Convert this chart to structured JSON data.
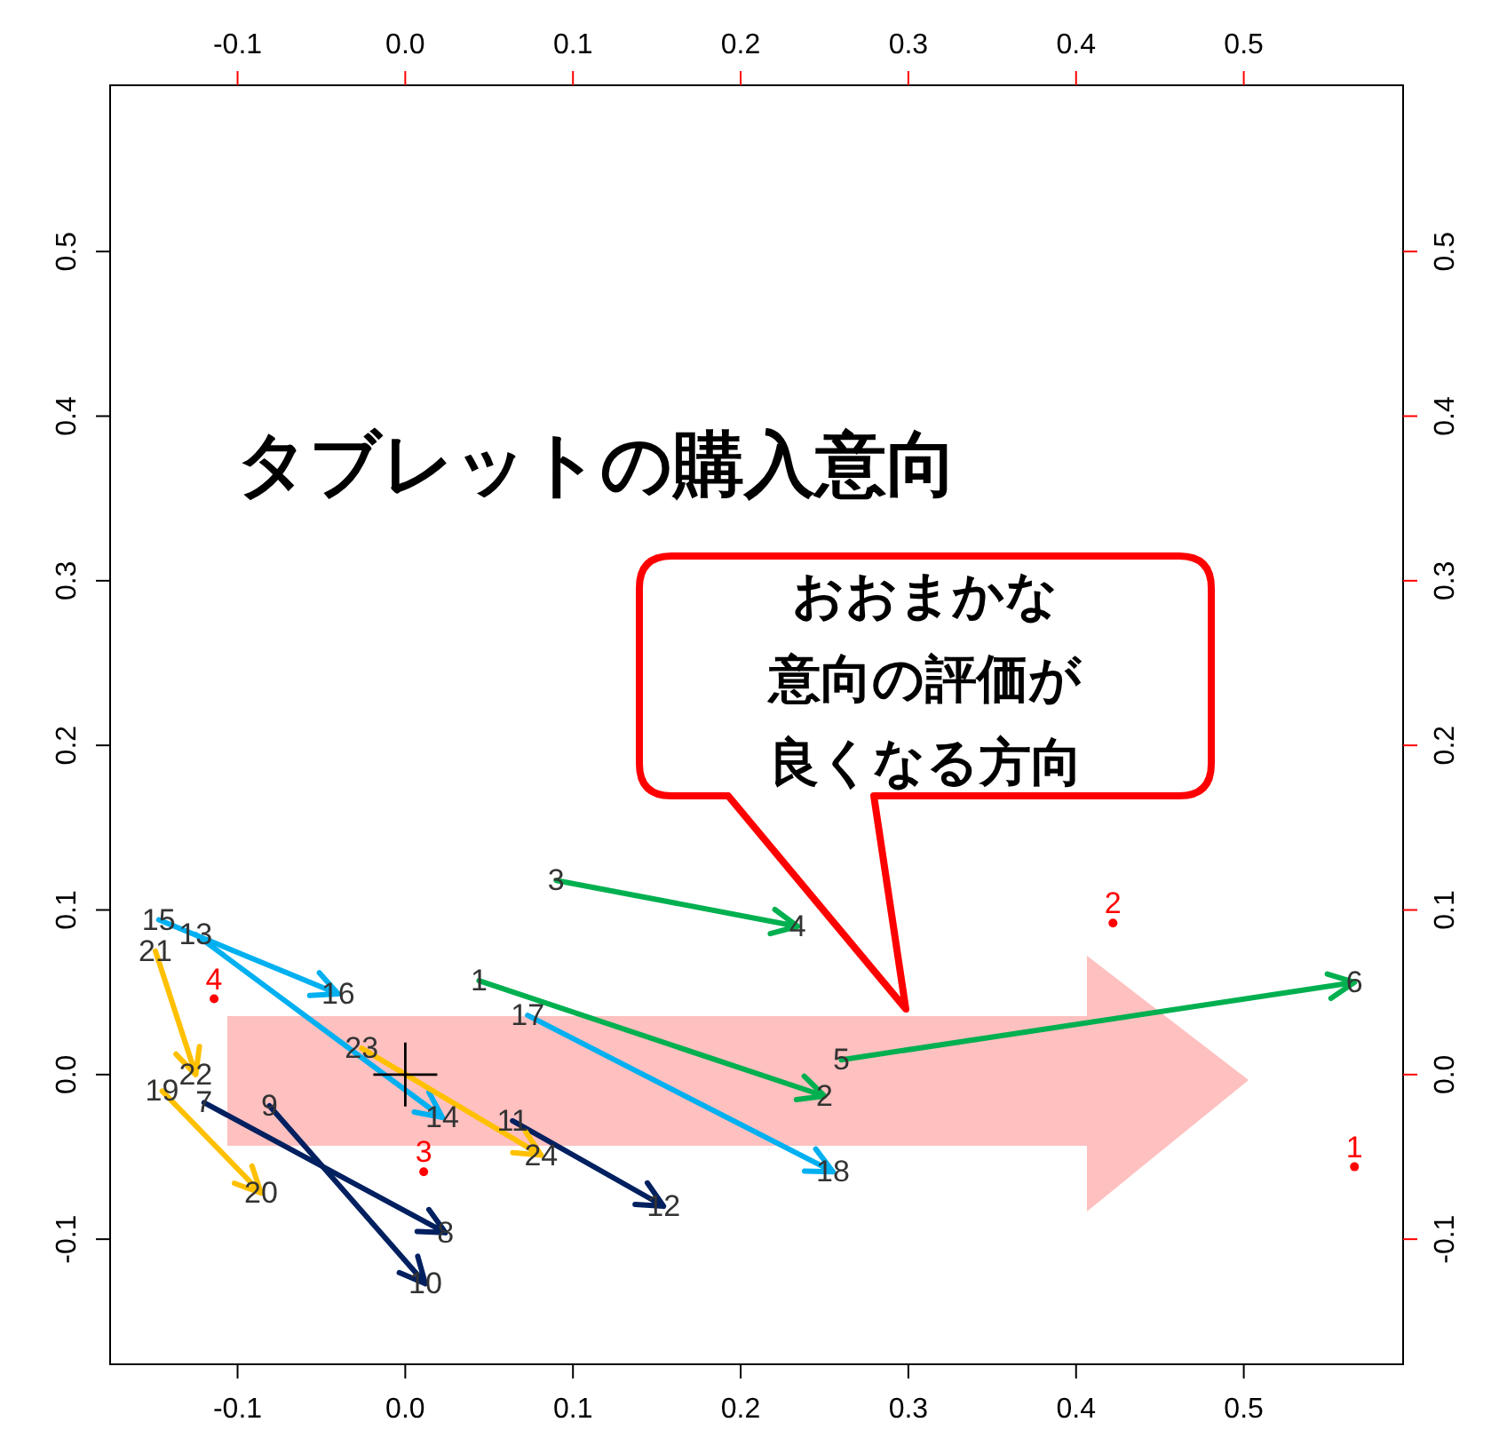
{
  "chart_data": {
    "type": "line",
    "title": "タブレットの購入意向",
    "annotations": [
      "おおまかな",
      "意向の評価が",
      "良くなる方向",
      {
        "text": "1",
        "x": 0.044,
        "y": 0.057
      },
      {
        "text": "2",
        "x": 0.25,
        "y": -0.013
      },
      {
        "text": "3",
        "x": 0.09,
        "y": 0.118
      },
      {
        "text": "4",
        "x": 0.234,
        "y": 0.09
      },
      {
        "text": "5",
        "x": 0.26,
        "y": 0.009
      },
      {
        "text": "6",
        "x": 0.566,
        "y": 0.056
      },
      {
        "text": "7",
        "x": -0.12,
        "y": -0.017
      },
      {
        "text": "8",
        "x": 0.024,
        "y": -0.096
      },
      {
        "text": "9",
        "x": -0.081,
        "y": -0.019
      },
      {
        "text": "10",
        "x": 0.012,
        "y": -0.127
      },
      {
        "text": "11",
        "x": 0.064,
        "y": -0.028
      },
      {
        "text": "12",
        "x": 0.154,
        "y": -0.08
      },
      {
        "text": "13",
        "x": -0.125,
        "y": 0.085
      },
      {
        "text": "14",
        "x": 0.022,
        "y": -0.026
      },
      {
        "text": "15",
        "x": -0.147,
        "y": 0.094
      },
      {
        "text": "16",
        "x": -0.04,
        "y": 0.049
      },
      {
        "text": "17",
        "x": 0.073,
        "y": 0.036
      },
      {
        "text": "18",
        "x": 0.255,
        "y": -0.059
      },
      {
        "text": "19",
        "x": -0.145,
        "y": -0.01
      },
      {
        "text": "20",
        "x": -0.086,
        "y": -0.072
      },
      {
        "text": "21",
        "x": -0.149,
        "y": 0.075
      },
      {
        "text": "22",
        "x": -0.125,
        "y": 0.0
      },
      {
        "text": "23",
        "x": -0.026,
        "y": 0.016
      },
      {
        "text": "24",
        "x": 0.081,
        "y": -0.049
      },
      {
        "text": "1",
        "x": 0.566,
        "y": -0.056
      },
      {
        "text": "2",
        "x": 0.422,
        "y": 0.092
      },
      {
        "text": "3",
        "x": 0.011,
        "y": -0.059
      },
      {
        "text": "4",
        "x": -0.114,
        "y": 0.046
      }
    ],
    "xlim": [
      -0.176,
      0.595
    ],
    "ylim": [
      -0.176,
      0.601
    ],
    "x2lim": [
      -0.176,
      0.595
    ],
    "y2lim": [
      -0.176,
      0.601
    ],
    "xticks": [
      -0.1,
      {
        "value": 0,
        "label": "0.0"
      },
      0.1,
      0.2,
      0.3,
      0.4,
      0.5
    ],
    "yticks": [
      -0.1,
      {
        "value": 0,
        "label": "0.0"
      },
      0.1,
      0.2,
      0.3,
      0.4,
      0.5
    ],
    "x2ticks": [
      -0.1,
      {
        "value": 0,
        "label": "0.0"
      },
      0.1,
      0.2,
      0.3,
      0.4,
      0.5
    ],
    "y2ticks": [
      -0.1,
      {
        "value": 0,
        "label": "0.0"
      },
      0.1,
      0.2,
      0.3,
      0.4,
      0.5
    ],
    "marker": "none",
    "series": [
      {
        "color": "#00b050",
        "x": [
          0.044,
          0.25
        ],
        "values": [
          0.057,
          -0.013
        ]
      },
      {
        "color": "#00b050",
        "x": [
          0.09,
          0.234
        ],
        "values": [
          0.118,
          0.09
        ]
      },
      {
        "color": "#00b050",
        "x": [
          0.26,
          0.566
        ],
        "values": [
          0.009,
          0.056
        ]
      },
      {
        "color": "#002060",
        "x": [
          -0.12,
          0.024
        ],
        "values": [
          -0.017,
          -0.096
        ]
      },
      {
        "color": "#002060",
        "x": [
          -0.081,
          0.012
        ],
        "values": [
          -0.019,
          -0.127
        ]
      },
      {
        "color": "#002060",
        "x": [
          0.064,
          0.154
        ],
        "values": [
          -0.028,
          -0.08
        ]
      },
      {
        "color": "#00b0f0",
        "x": [
          -0.125,
          0.022
        ],
        "values": [
          0.085,
          -0.026
        ]
      },
      {
        "color": "#00b0f0",
        "x": [
          -0.147,
          -0.04
        ],
        "values": [
          0.094,
          0.049
        ]
      },
      {
        "color": "#00b0f0",
        "x": [
          0.073,
          0.255
        ],
        "values": [
          0.036,
          -0.059
        ]
      },
      {
        "color": "#ffc000",
        "x": [
          -0.145,
          -0.086
        ],
        "values": [
          -0.01,
          -0.072
        ]
      },
      {
        "color": "#ffc000",
        "x": [
          -0.149,
          -0.125
        ],
        "values": [
          0.075,
          0.0
        ]
      },
      {
        "color": "#ffc000",
        "x": [
          -0.026,
          0.081
        ],
        "values": [
          0.016,
          -0.049
        ]
      },
      {
        "type": "scatter",
        "marker": "circle",
        "color": "#ff0000",
        "x": [
          0.566,
          0.422,
          0.011,
          -0.114
        ],
        "values": [
          -0.056,
          0.092,
          -0.059,
          0.046
        ]
      },
      {
        "type": "scatter",
        "marker": "cross",
        "color": "#000000",
        "x": [
          0
        ],
        "values": [
          0
        ]
      }
    ]
  }
}
